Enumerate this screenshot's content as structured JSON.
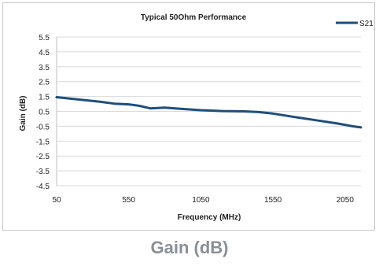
{
  "caption": "Gain (dB)",
  "chart_data": {
    "type": "line",
    "title": "Typical 50Ohm Performance",
    "xlabel": "Frequency (MHz)",
    "ylabel": "Gain (dB)",
    "xlim": [
      50,
      2160
    ],
    "ylim": [
      -4.5,
      5.5
    ],
    "xticks": [
      50,
      550,
      1050,
      1550,
      2050
    ],
    "yticks": [
      5.5,
      4.5,
      3.5,
      2.5,
      1.5,
      0.5,
      -0.5,
      -1.5,
      -2.5,
      -3.5,
      -4.5
    ],
    "grid": true,
    "legend_position": "top-right",
    "series": [
      {
        "name": "S21",
        "color": "#1f4e79",
        "x": [
          50,
          200,
          350,
          450,
          550,
          620,
          700,
          800,
          900,
          1050,
          1200,
          1350,
          1450,
          1550,
          1700,
          1850,
          2000,
          2100,
          2160
        ],
        "y": [
          1.45,
          1.3,
          1.15,
          1.02,
          0.97,
          0.88,
          0.7,
          0.75,
          0.68,
          0.58,
          0.52,
          0.5,
          0.45,
          0.35,
          0.12,
          -0.1,
          -0.32,
          -0.5,
          -0.58
        ]
      }
    ]
  }
}
